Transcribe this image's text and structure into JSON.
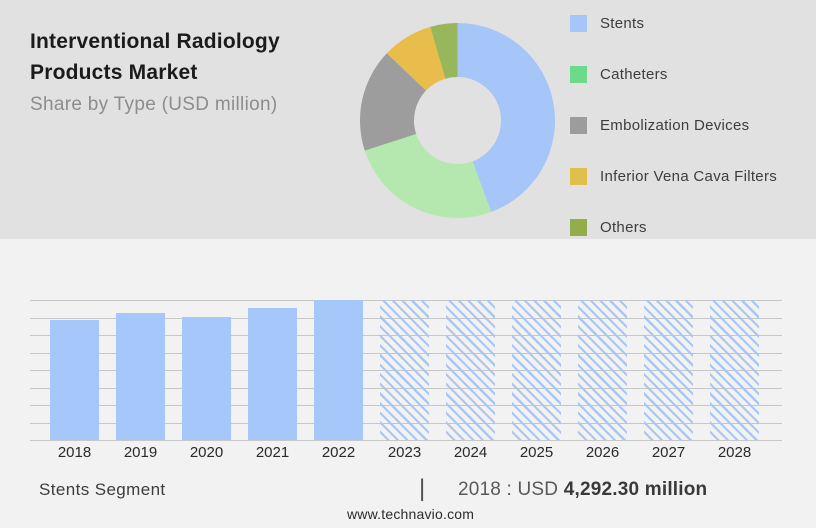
{
  "header": {
    "title_line1": "Interventional Radiology",
    "title_line2": "Products Market",
    "subtitle": "Share by Type (USD million)"
  },
  "footer": {
    "segment_label": "Stents Segment",
    "separator": "|",
    "stat_prefix": "2018 : USD ",
    "stat_value": "4,292.30 million",
    "website": "www.technavio.com"
  },
  "chart_data": [
    {
      "type": "pie",
      "subtype": "donut",
      "title": "Share by Type (USD million)",
      "legend_position": "right",
      "data_labels_shown": false,
      "segments": [
        {
          "label": "Stents",
          "percent_est": 44.4,
          "donut_color": "#a6c5f8",
          "legend_color": "#a6c5f8"
        },
        {
          "label": "Catheters",
          "percent_est": 25.6,
          "donut_color": "#b5e8ae",
          "legend_color": "#6bdb8b"
        },
        {
          "label": "Embolization Devices",
          "percent_est": 17.1,
          "donut_color": "#9d9d9d",
          "legend_color": "#9c9c9c"
        },
        {
          "label": "Inferior Vena Cava Filters",
          "percent_est": 8.4,
          "donut_color": "#e9bd4b",
          "legend_color": "#dfc04b"
        },
        {
          "label": "Others",
          "percent_est": 4.5,
          "donut_color": "#97b75a",
          "legend_color": "#94ad4b"
        }
      ]
    },
    {
      "type": "bar",
      "categories": [
        "2018",
        "2019",
        "2020",
        "2021",
        "2022",
        "2023",
        "2024",
        "2025",
        "2026",
        "2027",
        "2028"
      ],
      "values_relative_est": [
        0.857,
        0.907,
        0.879,
        0.943,
        1.0,
        1.0,
        1.0,
        1.0,
        1.0,
        1.0,
        1.0
      ],
      "values_est_usd_million": [
        4292.3,
        4543,
        4400,
        4722,
        5008,
        null,
        null,
        null,
        null,
        null,
        null
      ],
      "hatched_forecast": [
        false,
        false,
        false,
        false,
        false,
        true,
        true,
        true,
        true,
        true,
        true
      ],
      "anchor": {
        "year": "2018",
        "value_usd_million": 4292.3
      },
      "bar_color": "#a5c7fa",
      "hatch_color": "#a9c7f1",
      "gridline_count": 9,
      "grid": true,
      "yaxis_labels_shown": false
    }
  ]
}
